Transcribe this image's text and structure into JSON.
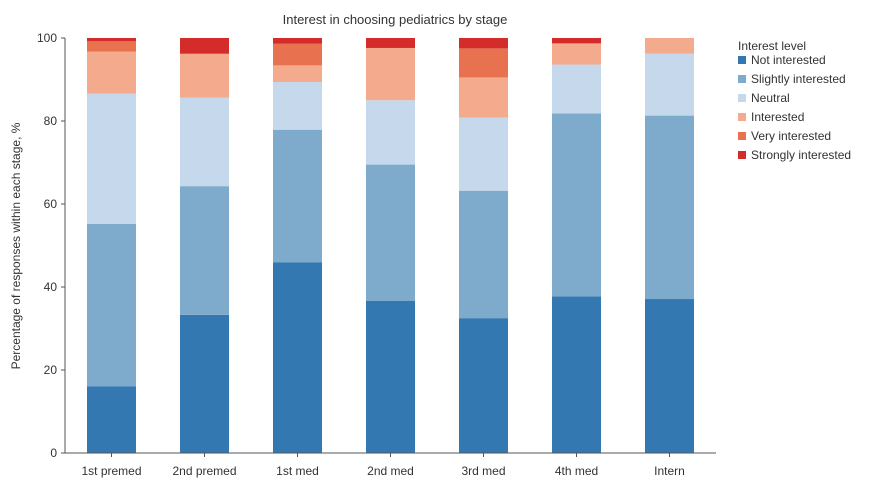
{
  "chart_data": {
    "type": "bar",
    "stacked": true,
    "title": "Interest in choosing pediatrics by stage",
    "xlabel": "",
    "ylabel": "Percentage of responses within each stage, %",
    "ylim": [
      0,
      100
    ],
    "yticks": [
      0,
      20,
      40,
      60,
      80,
      100
    ],
    "grid": false,
    "legend": {
      "title": "Interest level",
      "placement": "right"
    },
    "categories": [
      "1st premed",
      "2nd premed",
      "1st med",
      "2nd med",
      "3rd med",
      "4th med",
      "Intern"
    ],
    "series": [
      {
        "name": "Not interested",
        "color": "#3478b1",
        "values": [
          16.1,
          33.3,
          45.9,
          36.7,
          32.5,
          37.7,
          37.1
        ]
      },
      {
        "name": "Slightly interested",
        "color": "#7eaacc",
        "values": [
          39.1,
          31.0,
          32.0,
          32.8,
          30.7,
          44.1,
          44.2
        ]
      },
      {
        "name": "Neutral",
        "color": "#c6d8ec",
        "values": [
          31.4,
          21.3,
          11.5,
          15.5,
          17.6,
          11.8,
          14.9
        ]
      },
      {
        "name": "Interested",
        "color": "#f4aa8c",
        "values": [
          10.1,
          10.6,
          4.0,
          12.6,
          9.7,
          5.1,
          3.8
        ]
      },
      {
        "name": "Very interested",
        "color": "#e8714f",
        "values": [
          2.5,
          0.0,
          5.2,
          0.0,
          7.0,
          0.0,
          0.0
        ]
      },
      {
        "name": "Strongly interested",
        "color": "#d42c2b",
        "values": [
          0.8,
          3.8,
          1.4,
          2.4,
          2.5,
          1.3,
          0.0
        ]
      }
    ]
  }
}
